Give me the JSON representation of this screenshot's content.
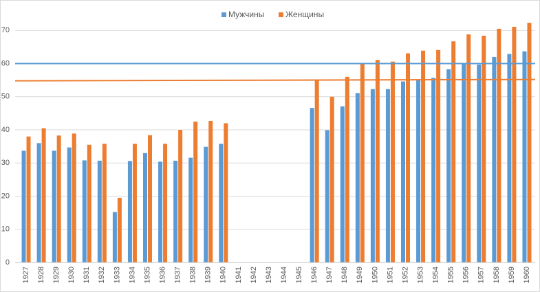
{
  "chart_data": {
    "type": "bar",
    "categories": [
      "1927",
      "1928",
      "1929",
      "1930",
      "1931",
      "1932",
      "1933",
      "1934",
      "1935",
      "1936",
      "1937",
      "1938",
      "1939",
      "1940",
      "1941",
      "1942",
      "1943",
      "1944",
      "1945",
      "1946",
      "1947",
      "1948",
      "1949",
      "1950",
      "1951",
      "1952",
      "1953",
      "1954",
      "1955",
      "1956",
      "1957",
      "1958",
      "1959",
      "1960"
    ],
    "series": [
      {
        "name": "Мужчины",
        "color": "#5b9bd5",
        "values": [
          33.7,
          36,
          33.7,
          34.7,
          30.8,
          30.7,
          15.2,
          30.6,
          33,
          30.4,
          30.7,
          31.6,
          34.9,
          35.8,
          null,
          null,
          null,
          null,
          null,
          46.6,
          39.9,
          47.1,
          51.1,
          52.3,
          52.3,
          54.6,
          55.1,
          55.7,
          58.3,
          60.2,
          59.7,
          62,
          62.9,
          63.7
        ]
      },
      {
        "name": "Женщины",
        "color": "#ed7d31",
        "values": [
          38,
          40.5,
          38.3,
          38.9,
          35.5,
          35.8,
          19.5,
          35.8,
          38.4,
          35.8,
          40,
          42.5,
          42.7,
          42,
          null,
          null,
          null,
          null,
          null,
          55.2,
          50,
          56,
          59.8,
          61.1,
          60.6,
          63.1,
          63.9,
          64.1,
          66.7,
          68.8,
          68.4,
          70.5,
          71.1,
          72.3
        ]
      }
    ],
    "reference_lines": [
      {
        "color": "#5b9bd5",
        "values": [
          60,
          60
        ]
      },
      {
        "color": "#ed7d31",
        "values": [
          54.8,
          55.2
        ]
      }
    ],
    "ylim": [
      0,
      74
    ],
    "yticks": [
      0,
      10,
      20,
      30,
      40,
      50,
      60,
      70
    ],
    "grid": true,
    "legend": "top"
  }
}
